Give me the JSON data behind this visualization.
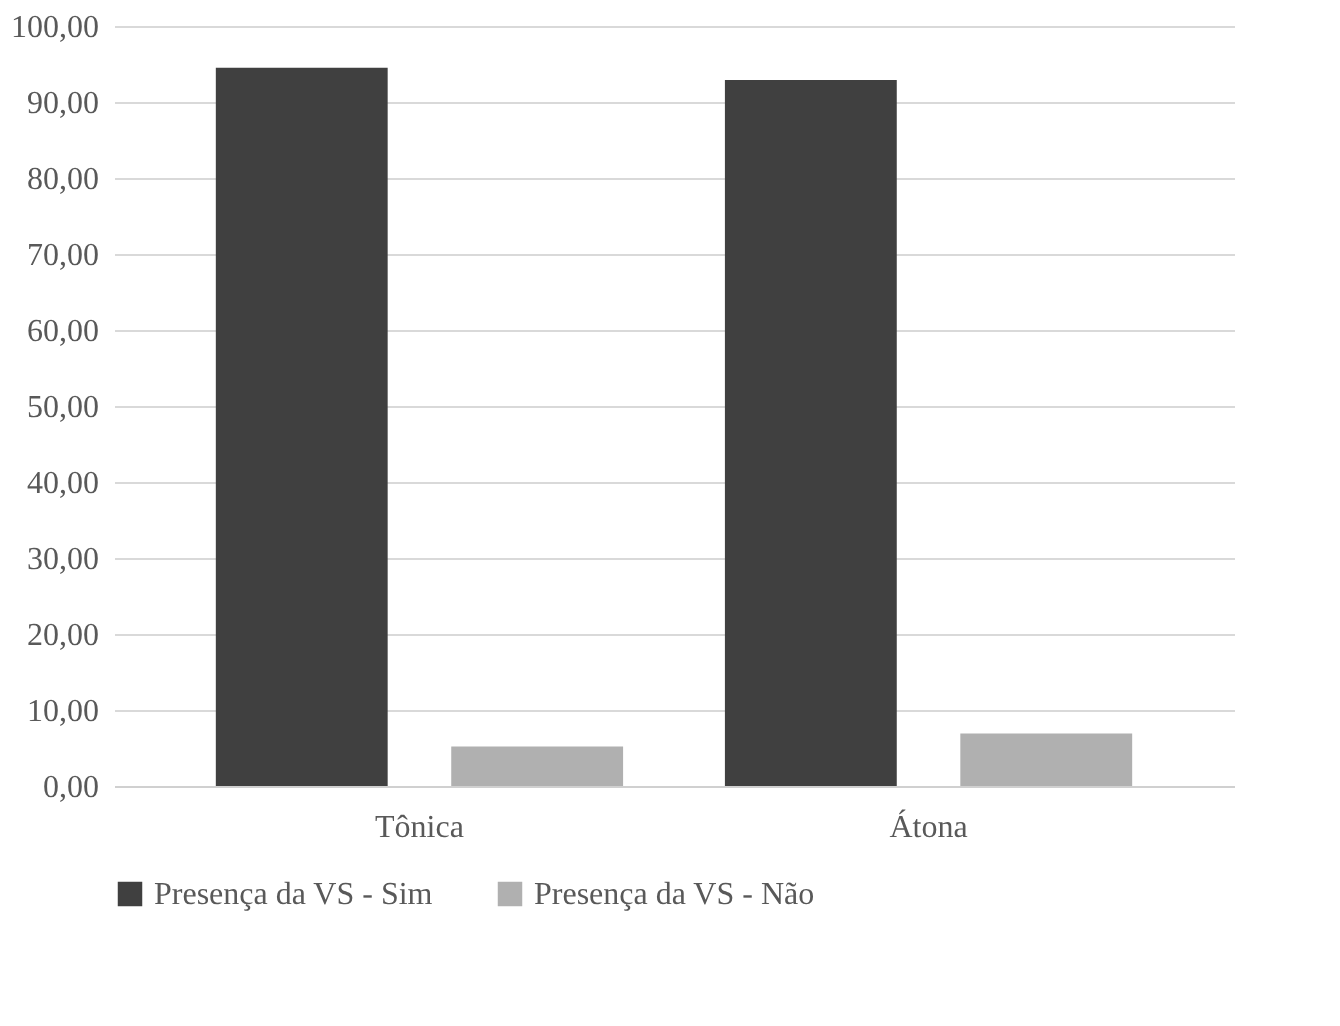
{
  "chart_data": {
    "type": "bar",
    "categories": [
      "Tônica",
      "Átona"
    ],
    "series": [
      {
        "name": "Presença da VS - Sim",
        "color": "#404040",
        "values": [
          94.5,
          92.9
        ]
      },
      {
        "name": "Presença da VS - Não",
        "color": "#b0b0b0",
        "values": [
          5.2,
          6.9
        ]
      }
    ],
    "ylim": [
      0,
      100
    ],
    "yticks": [
      {
        "value": 0,
        "label": "0,00"
      },
      {
        "value": 10,
        "label": "10,00"
      },
      {
        "value": 20,
        "label": "20,00"
      },
      {
        "value": 30,
        "label": "30,00"
      },
      {
        "value": 40,
        "label": "40,00"
      },
      {
        "value": 50,
        "label": "50,00"
      },
      {
        "value": 60,
        "label": "60,00"
      },
      {
        "value": 70,
        "label": "70,00"
      },
      {
        "value": 80,
        "label": "80,00"
      },
      {
        "value": 90,
        "label": "90,00"
      },
      {
        "value": 100,
        "label": "100,00"
      }
    ],
    "grid": "y",
    "legend": "bottom"
  }
}
